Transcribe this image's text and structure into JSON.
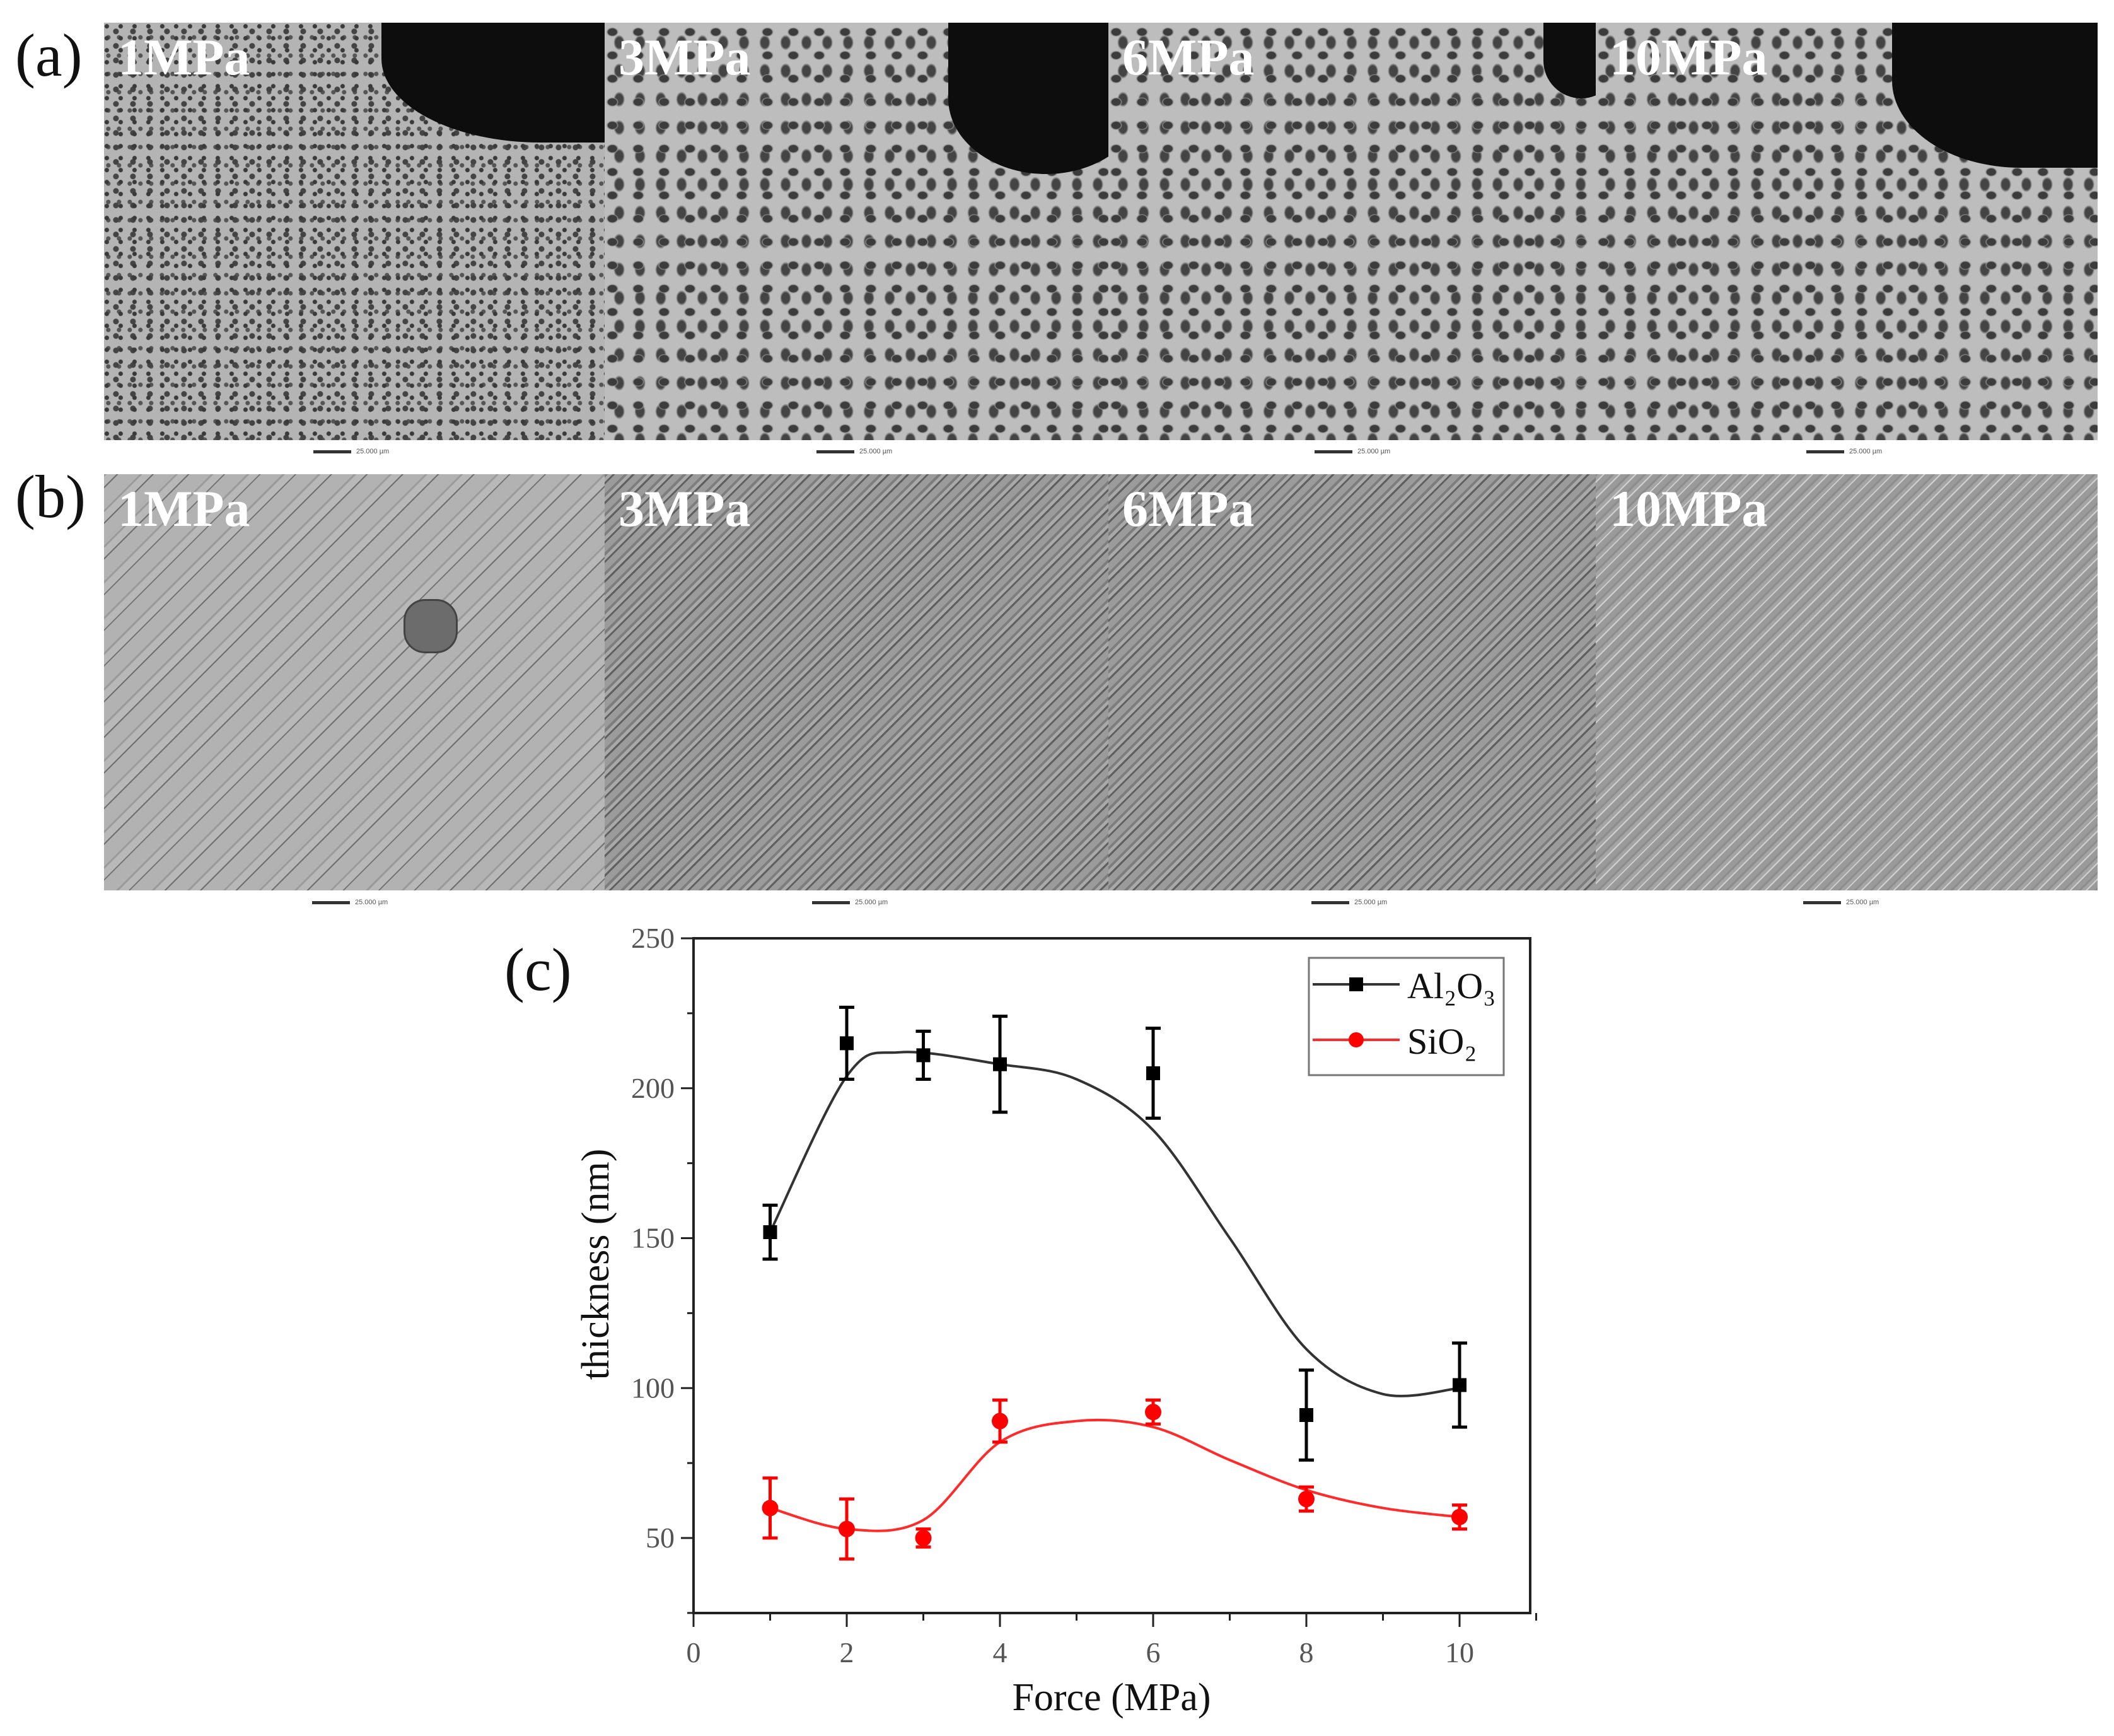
{
  "figure": {
    "panel_labels": {
      "a": "(a)",
      "b": "(b)",
      "c": "(c)"
    },
    "row_a": {
      "panels": [
        {
          "label": "1MPa",
          "scale_bar": "25.000 µm"
        },
        {
          "label": "3MPa",
          "scale_bar": "25.000 µm"
        },
        {
          "label": "6MPa",
          "scale_bar": "25.000 µm"
        },
        {
          "label": "10MPa",
          "scale_bar": "25.000 µm"
        }
      ]
    },
    "row_b": {
      "panels": [
        {
          "label": "1MPa",
          "scale_bar": "25.000 µm"
        },
        {
          "label": "3MPa",
          "scale_bar": "25.000 µm"
        },
        {
          "label": "6MPa",
          "scale_bar": "25.000 µm"
        },
        {
          "label": "10MPa",
          "scale_bar": "25.000 µm"
        }
      ]
    }
  },
  "chart_data": {
    "type": "line",
    "title": "",
    "xlabel": "Force (MPa)",
    "ylabel": "thickness (nm)",
    "xlim": [
      0,
      11
    ],
    "ylim": [
      25,
      250
    ],
    "xticks": [
      "0",
      "2",
      "4",
      "6",
      "8",
      "10"
    ],
    "yticks": [
      "50",
      "100",
      "150",
      "200",
      "250"
    ],
    "grid": false,
    "legend_position": "upper right",
    "x": [
      1,
      2,
      3,
      4,
      6,
      8,
      10
    ],
    "series": [
      {
        "name": "Al2O3",
        "display": "Al₂O₃",
        "color": "#000000",
        "marker": "square",
        "line_color": "#333333",
        "values": [
          152,
          215,
          211,
          208,
          205,
          91,
          101
        ],
        "errors": [
          9,
          12,
          8,
          16,
          15,
          15,
          14
        ]
      },
      {
        "name": "SiO2",
        "display": "SiO₂",
        "color": "#ff0000",
        "marker": "circle",
        "line_color": "#ff2a2a",
        "values": [
          60,
          53,
          50,
          89,
          92,
          63,
          57
        ],
        "errors": [
          10,
          10,
          3,
          7,
          4,
          4,
          4
        ]
      }
    ]
  }
}
